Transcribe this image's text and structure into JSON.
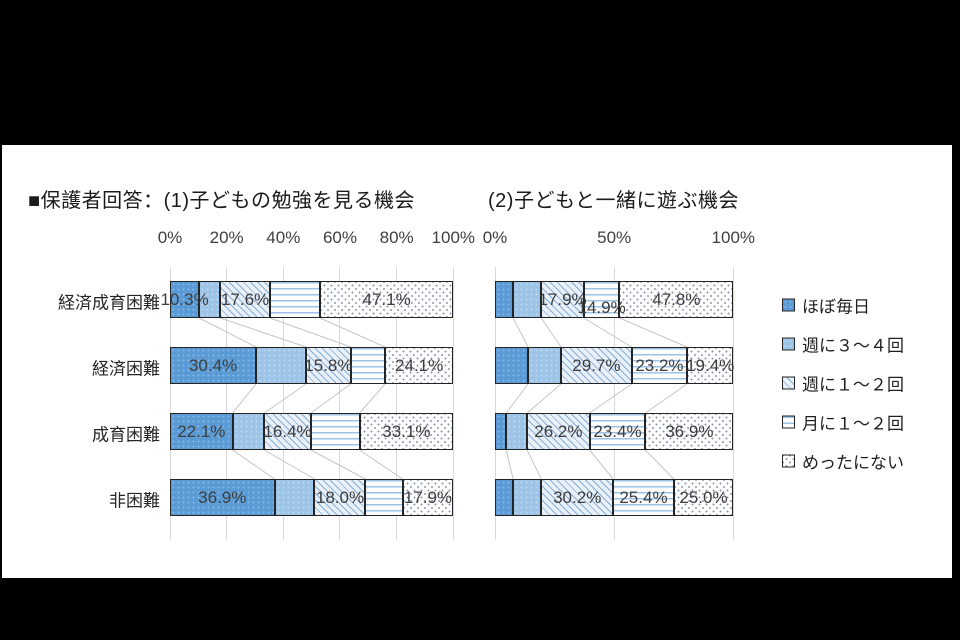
{
  "window": {
    "background_color": "#000000",
    "panel_background": "#ffffff"
  },
  "header": {
    "title_left": "■保護者回答：(1)子どもの勉強を見る機会",
    "title_right": "(2)子どもと一緒に遊ぶ機会"
  },
  "legend": {
    "position": "right",
    "items": [
      {
        "label": "ほぼ毎日",
        "pattern": "dark-blue-dotted",
        "color": "#5b9bd5"
      },
      {
        "label": "週に３～４回",
        "pattern": "light-blue-dotted",
        "color": "#9dc3e6"
      },
      {
        "label": "週に１～２回",
        "pattern": "diagonal-hatch-light-blue",
        "color": "#e9f0f8"
      },
      {
        "label": "月に１～２回",
        "pattern": "horizontal-lines",
        "color": "#ffffff"
      },
      {
        "label": "めったにない",
        "pattern": "sparse-dots-white",
        "color": "#ffffff"
      }
    ]
  },
  "chart_data": [
    {
      "type": "bar",
      "subtype": "horizontal-stacked-100",
      "title": "(1)子どもの勉強を見る機会",
      "x_axis": {
        "ticks": [
          "0%",
          "20%",
          "40%",
          "60%",
          "80%",
          "100%"
        ],
        "tick_values": [
          0,
          20,
          40,
          60,
          80,
          100
        ],
        "range": [
          0,
          100
        ]
      },
      "categories": [
        "経済成育困難",
        "経済困難",
        "成育困難",
        "非困難"
      ],
      "series": [
        {
          "name": "ほぼ毎日",
          "values": [
            10.3,
            30.4,
            22.1,
            36.9
          ],
          "label_visible": true,
          "values_estimated": false
        },
        {
          "name": "週に３～４回",
          "values": [
            7.4,
            17.6,
            11.2,
            14.1
          ],
          "label_visible": false,
          "values_estimated": true
        },
        {
          "name": "週に１～２回",
          "values": [
            17.6,
            15.8,
            16.4,
            18.0
          ],
          "label_visible": true,
          "values_estimated": false
        },
        {
          "name": "月に１～２回",
          "values": [
            17.6,
            12.1,
            17.2,
            13.1
          ],
          "label_visible": false,
          "values_estimated": true
        },
        {
          "name": "めったにない",
          "values": [
            47.1,
            24.1,
            33.1,
            17.9
          ],
          "label_visible": true,
          "values_estimated": false
        }
      ],
      "note": "segments without visible data labels estimated from bar widths; rows sum to 100%"
    },
    {
      "type": "bar",
      "subtype": "horizontal-stacked-100",
      "title": "(2)子どもと一緒に遊ぶ機会",
      "x_axis": {
        "ticks": [
          "0%",
          "50%",
          "100%"
        ],
        "tick_values": [
          0,
          50,
          100
        ],
        "range": [
          0,
          100
        ]
      },
      "categories": [
        "経済成育困難",
        "経済困難",
        "成育困難",
        "非困難"
      ],
      "series": [
        {
          "name": "ほぼ毎日",
          "values": [
            7.6,
            13.9,
            4.7,
            7.6
          ],
          "label_visible": false,
          "values_estimated": true
        },
        {
          "name": "週に３～４回",
          "values": [
            11.8,
            13.8,
            8.8,
            11.8
          ],
          "label_visible": false,
          "values_estimated": true
        },
        {
          "name": "週に１～２回",
          "values": [
            17.9,
            29.7,
            26.2,
            30.2
          ],
          "label_visible": true,
          "values_estimated": false
        },
        {
          "name": "月に１～２回",
          "values": [
            14.9,
            23.2,
            23.4,
            25.4
          ],
          "label_visible": true,
          "values_estimated": false
        },
        {
          "name": "めったにない",
          "values": [
            47.8,
            19.4,
            36.9,
            25.0
          ],
          "label_visible": true,
          "values_estimated": false
        }
      ],
      "note": "segments without visible data labels estimated from bar widths; rows sum to 100%"
    }
  ],
  "style_colors": {
    "gridline": "#d9d9d9",
    "series_connector_line": "#c6c6c6",
    "segment_border": "#242424",
    "data_label_text": "#3d3d3d",
    "axis_text": "#404040"
  }
}
